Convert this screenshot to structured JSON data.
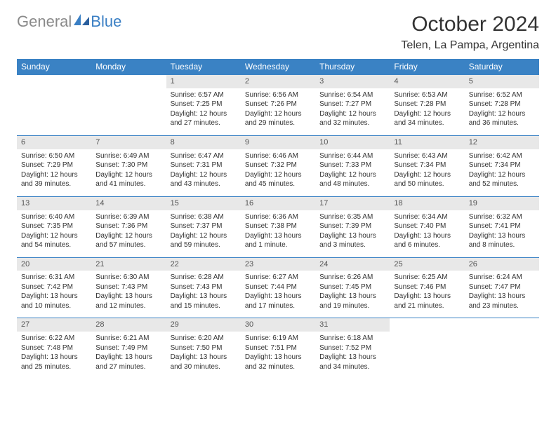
{
  "brand": {
    "name_a": "General",
    "name_b": "Blue"
  },
  "title": "October 2024",
  "location": "Telen, La Pampa, Argentina",
  "colors": {
    "header_bg": "#3a82c4",
    "header_fg": "#ffffff",
    "daynum_bg": "#e8e8e8",
    "rule": "#3a82c4"
  },
  "day_headers": [
    "Sunday",
    "Monday",
    "Tuesday",
    "Wednesday",
    "Thursday",
    "Friday",
    "Saturday"
  ],
  "weeks": [
    [
      null,
      null,
      {
        "n": "1",
        "sr": "Sunrise: 6:57 AM",
        "ss": "Sunset: 7:25 PM",
        "dl": "Daylight: 12 hours and 27 minutes."
      },
      {
        "n": "2",
        "sr": "Sunrise: 6:56 AM",
        "ss": "Sunset: 7:26 PM",
        "dl": "Daylight: 12 hours and 29 minutes."
      },
      {
        "n": "3",
        "sr": "Sunrise: 6:54 AM",
        "ss": "Sunset: 7:27 PM",
        "dl": "Daylight: 12 hours and 32 minutes."
      },
      {
        "n": "4",
        "sr": "Sunrise: 6:53 AM",
        "ss": "Sunset: 7:28 PM",
        "dl": "Daylight: 12 hours and 34 minutes."
      },
      {
        "n": "5",
        "sr": "Sunrise: 6:52 AM",
        "ss": "Sunset: 7:28 PM",
        "dl": "Daylight: 12 hours and 36 minutes."
      }
    ],
    [
      {
        "n": "6",
        "sr": "Sunrise: 6:50 AM",
        "ss": "Sunset: 7:29 PM",
        "dl": "Daylight: 12 hours and 39 minutes."
      },
      {
        "n": "7",
        "sr": "Sunrise: 6:49 AM",
        "ss": "Sunset: 7:30 PM",
        "dl": "Daylight: 12 hours and 41 minutes."
      },
      {
        "n": "8",
        "sr": "Sunrise: 6:47 AM",
        "ss": "Sunset: 7:31 PM",
        "dl": "Daylight: 12 hours and 43 minutes."
      },
      {
        "n": "9",
        "sr": "Sunrise: 6:46 AM",
        "ss": "Sunset: 7:32 PM",
        "dl": "Daylight: 12 hours and 45 minutes."
      },
      {
        "n": "10",
        "sr": "Sunrise: 6:44 AM",
        "ss": "Sunset: 7:33 PM",
        "dl": "Daylight: 12 hours and 48 minutes."
      },
      {
        "n": "11",
        "sr": "Sunrise: 6:43 AM",
        "ss": "Sunset: 7:34 PM",
        "dl": "Daylight: 12 hours and 50 minutes."
      },
      {
        "n": "12",
        "sr": "Sunrise: 6:42 AM",
        "ss": "Sunset: 7:34 PM",
        "dl": "Daylight: 12 hours and 52 minutes."
      }
    ],
    [
      {
        "n": "13",
        "sr": "Sunrise: 6:40 AM",
        "ss": "Sunset: 7:35 PM",
        "dl": "Daylight: 12 hours and 54 minutes."
      },
      {
        "n": "14",
        "sr": "Sunrise: 6:39 AM",
        "ss": "Sunset: 7:36 PM",
        "dl": "Daylight: 12 hours and 57 minutes."
      },
      {
        "n": "15",
        "sr": "Sunrise: 6:38 AM",
        "ss": "Sunset: 7:37 PM",
        "dl": "Daylight: 12 hours and 59 minutes."
      },
      {
        "n": "16",
        "sr": "Sunrise: 6:36 AM",
        "ss": "Sunset: 7:38 PM",
        "dl": "Daylight: 13 hours and 1 minute."
      },
      {
        "n": "17",
        "sr": "Sunrise: 6:35 AM",
        "ss": "Sunset: 7:39 PM",
        "dl": "Daylight: 13 hours and 3 minutes."
      },
      {
        "n": "18",
        "sr": "Sunrise: 6:34 AM",
        "ss": "Sunset: 7:40 PM",
        "dl": "Daylight: 13 hours and 6 minutes."
      },
      {
        "n": "19",
        "sr": "Sunrise: 6:32 AM",
        "ss": "Sunset: 7:41 PM",
        "dl": "Daylight: 13 hours and 8 minutes."
      }
    ],
    [
      {
        "n": "20",
        "sr": "Sunrise: 6:31 AM",
        "ss": "Sunset: 7:42 PM",
        "dl": "Daylight: 13 hours and 10 minutes."
      },
      {
        "n": "21",
        "sr": "Sunrise: 6:30 AM",
        "ss": "Sunset: 7:43 PM",
        "dl": "Daylight: 13 hours and 12 minutes."
      },
      {
        "n": "22",
        "sr": "Sunrise: 6:28 AM",
        "ss": "Sunset: 7:43 PM",
        "dl": "Daylight: 13 hours and 15 minutes."
      },
      {
        "n": "23",
        "sr": "Sunrise: 6:27 AM",
        "ss": "Sunset: 7:44 PM",
        "dl": "Daylight: 13 hours and 17 minutes."
      },
      {
        "n": "24",
        "sr": "Sunrise: 6:26 AM",
        "ss": "Sunset: 7:45 PM",
        "dl": "Daylight: 13 hours and 19 minutes."
      },
      {
        "n": "25",
        "sr": "Sunrise: 6:25 AM",
        "ss": "Sunset: 7:46 PM",
        "dl": "Daylight: 13 hours and 21 minutes."
      },
      {
        "n": "26",
        "sr": "Sunrise: 6:24 AM",
        "ss": "Sunset: 7:47 PM",
        "dl": "Daylight: 13 hours and 23 minutes."
      }
    ],
    [
      {
        "n": "27",
        "sr": "Sunrise: 6:22 AM",
        "ss": "Sunset: 7:48 PM",
        "dl": "Daylight: 13 hours and 25 minutes."
      },
      {
        "n": "28",
        "sr": "Sunrise: 6:21 AM",
        "ss": "Sunset: 7:49 PM",
        "dl": "Daylight: 13 hours and 27 minutes."
      },
      {
        "n": "29",
        "sr": "Sunrise: 6:20 AM",
        "ss": "Sunset: 7:50 PM",
        "dl": "Daylight: 13 hours and 30 minutes."
      },
      {
        "n": "30",
        "sr": "Sunrise: 6:19 AM",
        "ss": "Sunset: 7:51 PM",
        "dl": "Daylight: 13 hours and 32 minutes."
      },
      {
        "n": "31",
        "sr": "Sunrise: 6:18 AM",
        "ss": "Sunset: 7:52 PM",
        "dl": "Daylight: 13 hours and 34 minutes."
      },
      null,
      null
    ]
  ]
}
